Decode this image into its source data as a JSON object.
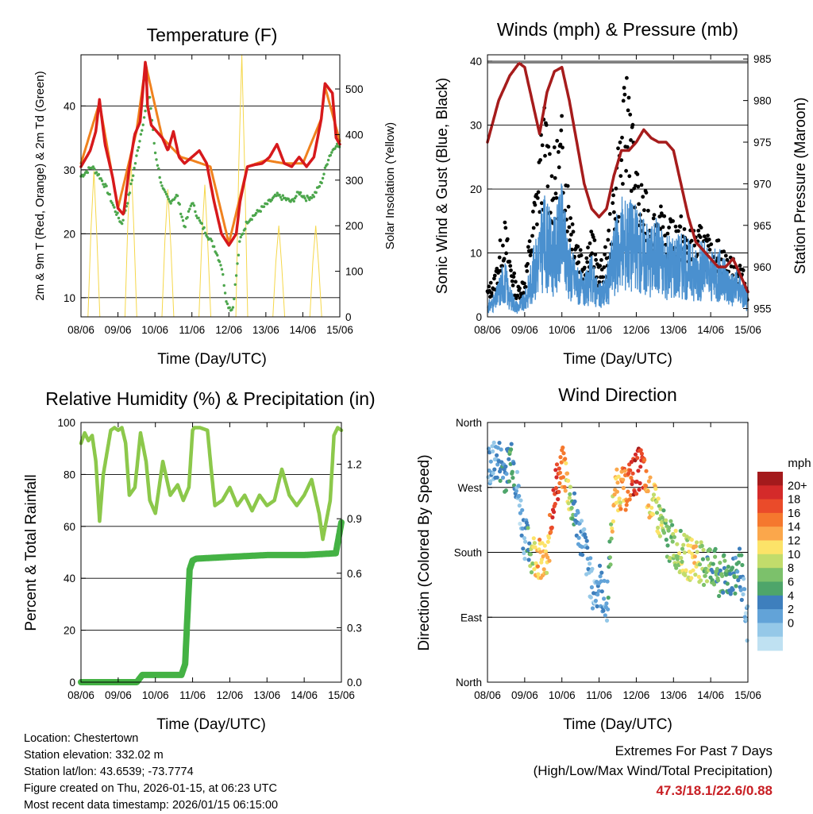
{
  "colors": {
    "temp2m": "#d7191c",
    "temp9m": "#f0821e",
    "dewpoint": "#4ca64c",
    "solar": "#f5d74a",
    "wind": "#4a90cf",
    "gust": "#000000",
    "pressure": "#a61c1c",
    "rh": "#8cc84b",
    "precip": "#44b244",
    "extremes": "#c81e23"
  },
  "info": {
    "location": "Location: Chestertown",
    "elevation": "Station elevation: 332.02 m",
    "latlon": "Station lat/lon: 43.6539; -73.7774",
    "created": "Figure created on Thu, 2026-01-15, at 06:23 UTC",
    "recent": "Most recent data timestamp: 2026/01/15 06:15:00"
  },
  "extremes": {
    "title": "Extremes For Past 7 Days",
    "subtitle": "(High/Low/Max Wind/Total Precipitation)",
    "values": "47.3/18.1/22.6/0.88"
  },
  "chart_data": [
    {
      "id": "temperature",
      "type": "line",
      "title": "Temperature (F)",
      "xlabel": "Time (Day/UTC)",
      "ylabel": "2m & 9m T (Red, Orange) & 2m Td (Green)",
      "ylabel_right": "Solar Insolation (Yellow)",
      "xlim": [
        0,
        7
      ],
      "ylim": [
        7,
        48
      ],
      "ylim_right": [
        0,
        575
      ],
      "x_ticks": [
        "08/06",
        "09/06",
        "10/06",
        "11/06",
        "12/06",
        "13/06",
        "14/06",
        "15/06"
      ],
      "y_ticks": [
        10,
        20,
        30,
        40
      ],
      "y_ticks_right": [
        0,
        100,
        200,
        300,
        400,
        500
      ],
      "gridlines": [
        10,
        20,
        30,
        40
      ],
      "series": [
        {
          "name": "2m T",
          "color": "#d7191c",
          "x": [
            0,
            0.25,
            0.4,
            0.5,
            0.65,
            0.85,
            1.0,
            1.15,
            1.3,
            1.45,
            1.6,
            1.75,
            1.8,
            1.9,
            2.05,
            2.2,
            2.35,
            2.5,
            2.65,
            2.8,
            3.0,
            3.2,
            3.4,
            3.6,
            3.8,
            4.0,
            4.2,
            4.3,
            4.5,
            4.7,
            4.9,
            5.1,
            5.3,
            5.5,
            5.7,
            5.9,
            6.1,
            6.3,
            6.5,
            6.6,
            6.8,
            6.9,
            7.0
          ],
          "values": [
            30.5,
            33,
            36,
            41,
            34,
            29,
            24,
            23,
            30,
            35.5,
            37.5,
            47.5,
            40,
            37,
            36,
            35,
            33,
            36,
            32,
            31,
            32,
            33,
            31,
            25,
            20,
            18.2,
            20,
            25,
            30.5,
            30.8,
            31,
            32,
            34,
            31,
            30.5,
            32,
            30.5,
            32,
            38,
            43.5,
            42,
            35,
            34
          ]
        },
        {
          "name": "9m T",
          "color": "#f0821e",
          "x": [
            0,
            0.5,
            1.0,
            1.5,
            1.75,
            2.2,
            2.7,
            3.0,
            3.5,
            4.0,
            4.5,
            5.0,
            5.5,
            6.0,
            6.5,
            6.6,
            7.0
          ],
          "values": [
            31,
            40.5,
            24,
            36,
            46.5,
            35,
            32,
            31.5,
            30.5,
            18.5,
            30.5,
            31.5,
            31,
            31,
            38,
            43,
            34.5
          ]
        },
        {
          "name": "2m Td",
          "color": "#4ca64c",
          "x": [
            0,
            0.3,
            0.5,
            0.7,
            0.9,
            1.1,
            1.3,
            1.5,
            1.7,
            1.85,
            2.0,
            2.2,
            2.4,
            2.6,
            2.8,
            3.0,
            3.2,
            3.4,
            3.6,
            3.8,
            3.95,
            4.1,
            4.3,
            4.5,
            4.7,
            4.9,
            5.1,
            5.3,
            5.5,
            5.7,
            5.9,
            6.1,
            6.3,
            6.5,
            6.7,
            6.9,
            7.0
          ],
          "values": [
            29,
            30.5,
            29,
            27,
            24,
            21.5,
            26,
            32,
            38,
            42,
            33,
            27,
            25,
            26,
            21,
            25,
            22,
            20,
            18,
            15,
            9,
            8,
            19,
            22,
            23,
            24,
            25,
            26,
            25.5,
            25,
            26.5,
            25.5,
            26,
            28,
            32,
            34,
            33.5
          ]
        },
        {
          "name": "Solar Insolation",
          "color": "#f5d74a",
          "axis": "right",
          "peaks_x": [
            0.35,
            1.35,
            2.35,
            3.35,
            4.35,
            5.35,
            6.35
          ],
          "peaks": [
            320,
            350,
            280,
            290,
            575,
            200,
            200
          ]
        }
      ]
    },
    {
      "id": "winds",
      "type": "scatter",
      "title": "Winds (mph) & Pressure (mb)",
      "xlabel": "Time (Day/UTC)",
      "ylabel": "Sonic Wind & Gust (Blue, Black)",
      "ylabel_right": "Station Pressure (Maroon)",
      "xlim": [
        0,
        7
      ],
      "ylim": [
        0,
        41
      ],
      "ylim_right": [
        954,
        985.5
      ],
      "x_ticks": [
        "08/06",
        "09/06",
        "10/06",
        "11/06",
        "12/06",
        "13/06",
        "14/06",
        "15/06"
      ],
      "y_ticks": [
        0,
        10,
        20,
        30,
        40
      ],
      "y_ticks_right": [
        955,
        960,
        965,
        970,
        975,
        980,
        985
      ],
      "gridlines": [
        10,
        20,
        30,
        40
      ],
      "series": [
        {
          "name": "Sonic Wind",
          "color": "#4a90cf",
          "x": [
            0,
            0.2,
            0.45,
            0.6,
            0.8,
            1.0,
            1.2,
            1.4,
            1.55,
            1.75,
            2.0,
            2.2,
            2.4,
            2.6,
            2.8,
            3.0,
            3.2,
            3.4,
            3.6,
            3.8,
            4.0,
            4.2,
            4.4,
            4.6,
            4.8,
            5.0,
            5.2,
            5.4,
            5.6,
            5.8,
            6.0,
            6.2,
            6.4,
            6.6,
            6.8,
            7.0
          ],
          "values": [
            2,
            3,
            8,
            4,
            2,
            3,
            8,
            13,
            16,
            12,
            17,
            10,
            7,
            5,
            8,
            4,
            6,
            12,
            15,
            16,
            14,
            13,
            12,
            13,
            10,
            11,
            11,
            10,
            9,
            10,
            8,
            9,
            7,
            6,
            6,
            3
          ]
        },
        {
          "name": "Gust",
          "color": "#000000",
          "x": [
            0,
            0.2,
            0.45,
            0.6,
            0.8,
            1.0,
            1.2,
            1.4,
            1.55,
            1.75,
            2.0,
            2.2,
            2.4,
            2.6,
            2.8,
            3.0,
            3.2,
            3.4,
            3.6,
            3.8,
            4.0,
            4.2,
            4.4,
            4.6,
            4.8,
            5.0,
            5.2,
            5.4,
            5.6,
            5.8,
            6.0,
            6.2,
            6.4,
            6.6,
            6.8,
            7.0
          ],
          "values": [
            4,
            6,
            14,
            9,
            4,
            6,
            14,
            24,
            30,
            22,
            28,
            18,
            12,
            9,
            13,
            7,
            10,
            20,
            28,
            37,
            20,
            18,
            15,
            16,
            13,
            14,
            14,
            12,
            12,
            13,
            10,
            11,
            9,
            8,
            8,
            4
          ]
        },
        {
          "name": "Station Pressure",
          "color": "#a61c1c",
          "axis": "right",
          "x": [
            0,
            0.3,
            0.6,
            0.85,
            1.0,
            1.2,
            1.4,
            1.6,
            1.8,
            2.0,
            2.2,
            2.4,
            2.6,
            2.8,
            3.0,
            3.2,
            3.4,
            3.6,
            3.8,
            4.0,
            4.2,
            4.4,
            4.6,
            4.8,
            5.0,
            5.2,
            5.4,
            5.6,
            5.8,
            6.0,
            6.2,
            6.4,
            6.6,
            6.8,
            6.9,
            7.0
          ],
          "values": [
            975,
            980,
            983,
            984.5,
            984,
            980,
            976,
            981,
            983.5,
            984,
            980,
            975,
            970,
            967,
            966,
            967,
            971,
            974,
            974,
            975,
            976.5,
            975.5,
            975,
            975,
            974,
            970,
            966,
            963,
            962,
            961,
            960,
            960,
            961,
            959,
            958,
            957
          ]
        }
      ]
    },
    {
      "id": "humidity",
      "type": "line",
      "title": "Relative Humidity (%) & Precipitation (in)",
      "xlabel": "Time (Day/UTC)",
      "ylabel": "Percent & Total Rainfall",
      "xlim": [
        0,
        7
      ],
      "ylim": [
        0,
        100
      ],
      "ylim_right": [
        0,
        1.43
      ],
      "x_ticks": [
        "08/06",
        "09/06",
        "10/06",
        "11/06",
        "12/06",
        "13/06",
        "14/06",
        "15/06"
      ],
      "y_ticks": [
        0,
        20,
        40,
        60,
        80,
        100
      ],
      "y_ticks_right": [
        "0.0",
        "0.3",
        "0.6",
        "0.9",
        "1.2"
      ],
      "gridlines": [
        0,
        20,
        40,
        60,
        80,
        100
      ],
      "series": [
        {
          "name": "Relative Humidity",
          "color": "#8cc84b",
          "x": [
            0,
            0.1,
            0.2,
            0.3,
            0.4,
            0.5,
            0.6,
            0.8,
            0.9,
            1.0,
            1.1,
            1.2,
            1.3,
            1.45,
            1.6,
            1.75,
            1.85,
            2.0,
            2.1,
            2.2,
            2.4,
            2.6,
            2.75,
            2.9,
            3.0,
            3.05,
            3.2,
            3.4,
            3.5,
            3.6,
            3.8,
            4.0,
            4.2,
            4.4,
            4.6,
            4.8,
            5.0,
            5.2,
            5.4,
            5.6,
            5.8,
            6.0,
            6.2,
            6.4,
            6.5,
            6.7,
            6.8,
            6.9,
            7.0
          ],
          "values": [
            92,
            96,
            93,
            95,
            85,
            62,
            80,
            97,
            98,
            97,
            98,
            92,
            72,
            75,
            96,
            85,
            70,
            65,
            75,
            85,
            72,
            76,
            70,
            75,
            97,
            98,
            98,
            97,
            82,
            68,
            70,
            75,
            68,
            72,
            66,
            72,
            68,
            70,
            82,
            72,
            68,
            72,
            78,
            65,
            55,
            70,
            95,
            98,
            97
          ]
        },
        {
          "name": "Total Precipitation",
          "color": "#44b244",
          "axis": "right",
          "x": [
            0,
            1.5,
            1.65,
            2.7,
            2.8,
            2.92,
            3.0,
            3.1,
            4.0,
            5.0,
            6.0,
            6.85,
            7.0
          ],
          "values": [
            0,
            0,
            0.04,
            0.04,
            0.1,
            0.62,
            0.67,
            0.68,
            0.69,
            0.7,
            0.7,
            0.71,
            0.88
          ]
        }
      ]
    },
    {
      "id": "direction",
      "type": "scatter",
      "title": "Wind Direction",
      "xlabel": "Time (Day/UTC)",
      "ylabel": "Direction (Colored By Speed)",
      "xlim": [
        0,
        7
      ],
      "ylim": [
        0,
        360
      ],
      "x_ticks": [
        "08/06",
        "09/06",
        "10/06",
        "11/06",
        "12/06",
        "13/06",
        "14/06",
        "15/06"
      ],
      "y_ticks": [
        "North",
        "East",
        "South",
        "West",
        "North"
      ],
      "y_tick_values": [
        0,
        90,
        180,
        270,
        360
      ],
      "gridlines": [
        90,
        180,
        270
      ],
      "colorbar": {
        "title": "mph",
        "labels": [
          "20+",
          "18",
          "16",
          "14",
          "12",
          "10",
          "8",
          "6",
          "4",
          "2",
          "0"
        ],
        "colors": [
          "#a41a1c",
          "#d42a2a",
          "#ea4b2a",
          "#f5782e",
          "#fba74b",
          "#fce368",
          "#c2dc6b",
          "#7cc16b",
          "#4ea56a",
          "#3e7fbd",
          "#62a3d8",
          "#95c8e8",
          "#bfe1f2"
        ]
      },
      "series": [
        {
          "name": "Direction",
          "x": [
            0.1,
            0.3,
            0.5,
            0.65,
            0.85,
            1.0,
            1.2,
            1.35,
            1.45,
            1.6,
            1.8,
            1.95,
            2.05,
            2.2,
            2.35,
            2.6,
            2.85,
            3.0,
            3.2,
            3.4,
            3.55,
            3.7,
            3.85,
            4.0,
            4.15,
            4.3,
            4.45,
            4.6,
            4.8,
            5.0,
            5.2,
            5.4,
            5.6,
            5.8,
            6.0,
            6.2,
            6.4,
            6.6,
            6.8,
            6.95
          ],
          "values": [
            300,
            310,
            290,
            320,
            250,
            200,
            180,
            175,
            165,
            160,
            270,
            285,
            300,
            260,
            230,
            190,
            120,
            140,
            100,
            260,
            270,
            265,
            280,
            290,
            300,
            260,
            250,
            230,
            200,
            190,
            180,
            170,
            175,
            160,
            165,
            150,
            145,
            150,
            160,
            80
          ],
          "speeds": [
            3,
            4,
            5,
            6,
            2,
            3,
            9,
            13,
            12,
            11,
            18,
            16,
            14,
            10,
            4,
            3,
            2,
            4,
            3,
            13,
            12,
            14,
            16,
            18,
            17,
            12,
            11,
            10,
            8,
            9,
            9,
            10,
            11,
            8,
            7,
            7,
            6,
            6,
            5,
            2
          ]
        }
      ]
    }
  ]
}
